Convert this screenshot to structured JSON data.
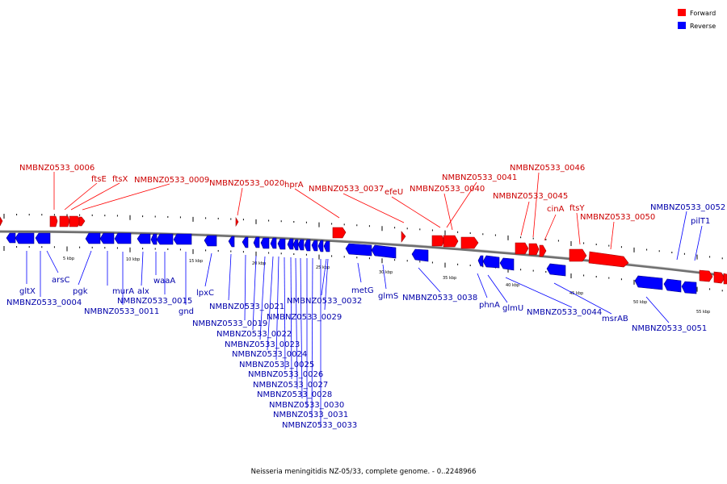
{
  "caption": "Neisseria meningitidis NZ-05/33, complete genome. - 0..2248966",
  "legend": [
    {
      "label": "Forward",
      "color": "#ff0000"
    },
    {
      "label": "Reverse",
      "color": "#0000ff"
    }
  ],
  "colors": {
    "forward": "#ff0000",
    "reverse": "#0000ff",
    "backbone": "#808080"
  },
  "scale_labels": [
    "5 kbp",
    "10 kbp",
    "15 kbp",
    "20 kbp",
    "25 kbp",
    "30 kbp",
    "35 kbp",
    "40 kbp",
    "45 kbp",
    "50 kbp",
    "55 kbp"
  ],
  "forward_labels": [
    "NMBNZ0533_0006",
    "ftsE",
    "ftsX",
    "NMBNZ0533_0009",
    "NMBNZ0533_0020",
    "hprA",
    "NMBNZ0533_0037",
    "efeU",
    "NMBNZ0533_0041",
    "NMBNZ0533_0040",
    "NMBNZ0533_0046",
    "NMBNZ0533_0045",
    "cinA",
    "ftsY",
    "NMBNZ0533_0050"
  ],
  "reverse_labels": [
    "NMBNZ0533_0052",
    "pilT1",
    "gltX",
    "NMBNZ0533_0004",
    "arsC",
    "pgk",
    "murA",
    "alx",
    "NMBNZ0533_0011",
    "waaA",
    "NMBNZ0533_0015",
    "gnd",
    "lpxC",
    "NMBNZ0533_0021",
    "NMBNZ0533_0032",
    "NMBNZ0533_0019",
    "NMBNZ0533_0029",
    "NMBNZ0533_0022",
    "NMBNZ0533_0023",
    "NMBNZ0533_0024",
    "NMBNZ0533_0025",
    "NMBNZ0533_0026",
    "NMBNZ0533_0027",
    "NMBNZ0533_0028",
    "NMBNZ0533_0030",
    "NMBNZ0533_0031",
    "NMBNZ0533_0033",
    "metG",
    "glmS",
    "NMBNZ0533_0038",
    "phnA",
    "glmU",
    "NMBNZ0533_0044",
    "msrAB",
    "NMBNZ0533_0051"
  ]
}
